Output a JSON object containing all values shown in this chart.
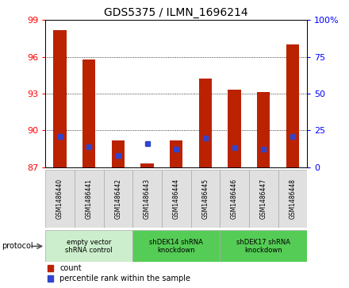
{
  "title": "GDS5375 / ILMN_1696214",
  "samples": [
    "GSM1486440",
    "GSM1486441",
    "GSM1486442",
    "GSM1486443",
    "GSM1486444",
    "GSM1486445",
    "GSM1486446",
    "GSM1486447",
    "GSM1486448"
  ],
  "count_values": [
    98.2,
    95.8,
    89.2,
    87.3,
    89.2,
    94.2,
    93.3,
    93.1,
    97.0
  ],
  "percentile_values": [
    21.0,
    14.0,
    8.0,
    16.0,
    12.0,
    20.0,
    13.0,
    12.0,
    21.0
  ],
  "ymin": 87,
  "ymax": 99,
  "yticks": [
    87,
    90,
    93,
    96,
    99
  ],
  "y2ticks_pct": [
    0,
    25,
    50,
    75,
    100
  ],
  "bar_color": "#bb2200",
  "percentile_color": "#3344cc",
  "groups": [
    {
      "label": "empty vector\nshRNA control",
      "start": 0,
      "end": 3,
      "color": "#cceecc"
    },
    {
      "label": "shDEK14 shRNA\nknockdown",
      "start": 3,
      "end": 6,
      "color": "#55cc55"
    },
    {
      "label": "shDEK17 shRNA\nknockdown",
      "start": 6,
      "end": 9,
      "color": "#55cc55"
    }
  ],
  "legend_count": "count",
  "legend_pct": "percentile rank within the sample",
  "protocol_label": "protocol",
  "bar_width": 0.45,
  "plot_bg": "#ffffff"
}
